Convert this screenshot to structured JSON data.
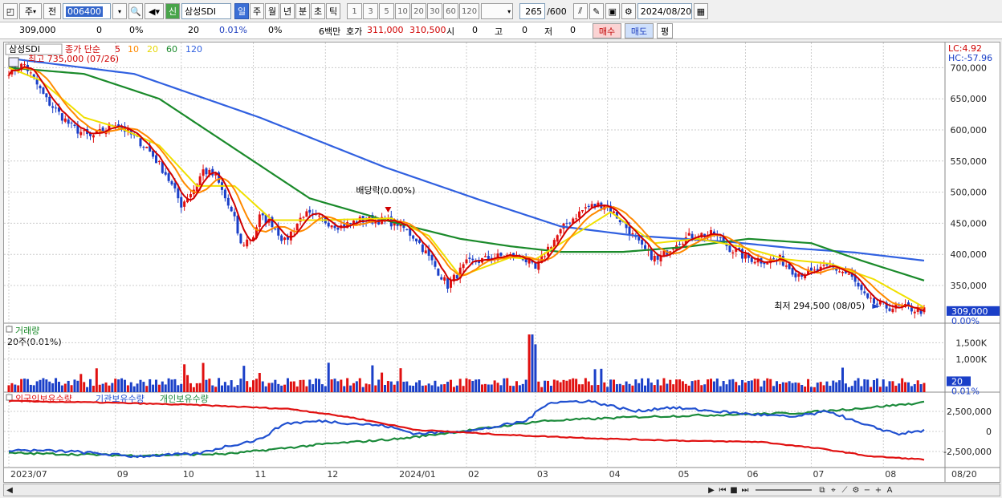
{
  "toolbar": {
    "type_select": "주",
    "prev_label": "전",
    "stock_code": "006400",
    "stock_name": "삼성SDI",
    "stock_badge": "신",
    "periods": [
      "일",
      "주",
      "월",
      "년",
      "분",
      "초",
      "틱"
    ],
    "active_period": "일",
    "intervals": [
      "1",
      "3",
      "5",
      "10",
      "20",
      "30",
      "60",
      "120"
    ],
    "bar_count": "265",
    "bar_total": "/600",
    "date": "2024/08/20"
  },
  "quote": {
    "price": "309,000",
    "change": "0",
    "change_pct": "0%",
    "volume": "20",
    "volume_pct": "0.01%",
    "turnover_pct": "0%",
    "amount_label": "6백만",
    "hoga_label": "호가",
    "ask": "311,000",
    "bid": "310,500",
    "open_label": "시",
    "open": "0",
    "high_label": "고",
    "high": "0",
    "low_label": "저",
    "low": "0",
    "buy_label": "매수",
    "sell_label": "매도",
    "avg_label": "평"
  },
  "chart_data": [
    {
      "type": "line",
      "name": "price",
      "title": "삼성SDI",
      "legend": [
        "종가 단순",
        "5",
        "10",
        "20",
        "60",
        "120"
      ],
      "legend_colors": [
        "#d00000",
        "#d00000",
        "#ff8a00",
        "#e6d800",
        "#1a8a2a",
        "#3060e0"
      ],
      "y_ticks": [
        "700,000",
        "650,000",
        "600,000",
        "550,000",
        "500,000",
        "450,000",
        "400,000",
        "350,000"
      ],
      "ylim": [
        292000,
        725000
      ],
      "x_ticks": [
        "2023/07",
        "09",
        "10",
        "11",
        "12",
        "2024/01",
        "02",
        "03",
        "04",
        "05",
        "06",
        "07",
        "08"
      ],
      "x_tick_index": [
        0,
        34,
        55,
        78,
        101,
        124,
        146,
        168,
        191,
        213,
        235,
        256,
        279
      ],
      "current_price_label": "309,000",
      "current_pct_label": "0.00%",
      "lc_label": "LC:4.92",
      "hc_label": "HC:-57.96",
      "max_label": "최고 735,000 (07/26)",
      "min_label": "최저 294,500 (08/05)",
      "dividend_label": "배당락(0.00%)",
      "dividend_index": 121,
      "min_index": 278,
      "close_keys": [
        [
          0,
          695000
        ],
        [
          5,
          705000
        ],
        [
          12,
          648000
        ],
        [
          20,
          605000
        ],
        [
          26,
          588000
        ],
        [
          30,
          598000
        ],
        [
          34,
          612000
        ],
        [
          38,
          596000
        ],
        [
          44,
          572000
        ],
        [
          50,
          530000
        ],
        [
          55,
          480000
        ],
        [
          59,
          505000
        ],
        [
          62,
          535000
        ],
        [
          66,
          525000
        ],
        [
          72,
          455000
        ],
        [
          74,
          415000
        ],
        [
          78,
          430000
        ],
        [
          80,
          460000
        ],
        [
          84,
          450000
        ],
        [
          88,
          420000
        ],
        [
          94,
          465000
        ],
        [
          100,
          455000
        ],
        [
          106,
          445000
        ],
        [
          112,
          455000
        ],
        [
          118,
          455000
        ],
        [
          124,
          450000
        ],
        [
          130,
          425000
        ],
        [
          136,
          380000
        ],
        [
          140,
          350000
        ],
        [
          146,
          385000
        ],
        [
          152,
          392000
        ],
        [
          158,
          398000
        ],
        [
          164,
          395000
        ],
        [
          168,
          375000
        ],
        [
          172,
          410000
        ],
        [
          178,
          450000
        ],
        [
          184,
          475000
        ],
        [
          190,
          482000
        ],
        [
          196,
          450000
        ],
        [
          202,
          410000
        ],
        [
          207,
          390000
        ],
        [
          213,
          420000
        ],
        [
          219,
          432000
        ],
        [
          225,
          432000
        ],
        [
          230,
          410000
        ],
        [
          235,
          395000
        ],
        [
          240,
          390000
        ],
        [
          246,
          392000
        ],
        [
          251,
          370000
        ],
        [
          256,
          370000
        ],
        [
          262,
          380000
        ],
        [
          268,
          368000
        ],
        [
          274,
          325000
        ],
        [
          280,
          315000
        ],
        [
          286,
          314000
        ],
        [
          292,
          309000
        ]
      ],
      "ma20_keys": [
        [
          0,
          700000
        ],
        [
          10,
          680000
        ],
        [
          24,
          620000
        ],
        [
          36,
          602000
        ],
        [
          48,
          575000
        ],
        [
          60,
          510000
        ],
        [
          72,
          510000
        ],
        [
          84,
          455000
        ],
        [
          100,
          455000
        ],
        [
          122,
          458000
        ],
        [
          134,
          430000
        ],
        [
          144,
          365000
        ],
        [
          160,
          395000
        ],
        [
          168,
          392000
        ],
        [
          180,
          430000
        ],
        [
          192,
          468000
        ],
        [
          206,
          418000
        ],
        [
          220,
          425000
        ],
        [
          234,
          412000
        ],
        [
          248,
          392000
        ],
        [
          262,
          385000
        ],
        [
          276,
          360000
        ],
        [
          292,
          315000
        ]
      ],
      "ma60_keys": [
        [
          0,
          700000
        ],
        [
          24,
          690000
        ],
        [
          48,
          650000
        ],
        [
          72,
          570000
        ],
        [
          96,
          490000
        ],
        [
          120,
          455000
        ],
        [
          144,
          425000
        ],
        [
          160,
          413000
        ],
        [
          176,
          404000
        ],
        [
          196,
          404000
        ],
        [
          216,
          412000
        ],
        [
          236,
          425000
        ],
        [
          256,
          418000
        ],
        [
          272,
          390000
        ],
        [
          292,
          358000
        ]
      ],
      "ma120_keys": [
        [
          0,
          715000
        ],
        [
          40,
          690000
        ],
        [
          80,
          620000
        ],
        [
          120,
          540000
        ],
        [
          150,
          488000
        ],
        [
          176,
          445000
        ],
        [
          200,
          430000
        ],
        [
          230,
          420000
        ],
        [
          250,
          410000
        ],
        [
          270,
          403000
        ],
        [
          292,
          390000
        ]
      ]
    },
    {
      "type": "bar",
      "name": "volume",
      "title": "거래량",
      "subtitle": "20주(0.01%)",
      "y_ticks": [
        "1,500K",
        "1,000K"
      ],
      "ylim": [
        0,
        1800000
      ],
      "current_label": "20",
      "current_pct_label": "0.01%",
      "spike_index": [
        166,
        167,
        168
      ],
      "spike_values": [
        1750000,
        1750000,
        1450000
      ]
    },
    {
      "type": "line",
      "name": "holdings",
      "legend": [
        "외국인보유수량",
        "기관보유수량",
        "개인보유수량"
      ],
      "legend_colors": [
        "#e01010",
        "#2050d0",
        "#1a8a3a"
      ],
      "y_ticks": [
        "2,500,000",
        "0",
        "-2,500,000"
      ],
      "ylim": [
        -4500000,
        4500000
      ],
      "foreign_keys": [
        [
          0,
          3800000
        ],
        [
          30,
          3600000
        ],
        [
          60,
          3300000
        ],
        [
          90,
          2800000
        ],
        [
          110,
          1700000
        ],
        [
          130,
          200000
        ],
        [
          160,
          -450000
        ],
        [
          190,
          -900000
        ],
        [
          220,
          -1200000
        ],
        [
          240,
          -1300000
        ],
        [
          260,
          -2200000
        ],
        [
          275,
          -3100000
        ],
        [
          292,
          -3500000
        ]
      ],
      "inst_keys": [
        [
          0,
          -2300000
        ],
        [
          20,
          -2500000
        ],
        [
          40,
          -3100000
        ],
        [
          60,
          -2800000
        ],
        [
          70,
          -1800000
        ],
        [
          80,
          -1000000
        ],
        [
          88,
          1000000
        ],
        [
          100,
          1300000
        ],
        [
          120,
          700000
        ],
        [
          130,
          -300000
        ],
        [
          150,
          200000
        ],
        [
          165,
          1300000
        ],
        [
          172,
          3600000
        ],
        [
          185,
          3800000
        ],
        [
          200,
          2500000
        ],
        [
          210,
          3000000
        ],
        [
          220,
          2700000
        ],
        [
          235,
          2200000
        ],
        [
          250,
          1800000
        ],
        [
          262,
          2500000
        ],
        [
          272,
          900000
        ],
        [
          284,
          -300000
        ],
        [
          292,
          100000
        ]
      ],
      "indiv_keys": [
        [
          0,
          -2700000
        ],
        [
          40,
          -3000000
        ],
        [
          70,
          -2800000
        ],
        [
          100,
          -1600000
        ],
        [
          125,
          -900000
        ],
        [
          150,
          300000
        ],
        [
          170,
          1300000
        ],
        [
          200,
          1800000
        ],
        [
          230,
          2100000
        ],
        [
          252,
          2300000
        ],
        [
          272,
          2900000
        ],
        [
          292,
          3600000
        ]
      ]
    }
  ],
  "status": {
    "right_date": "08/20"
  }
}
